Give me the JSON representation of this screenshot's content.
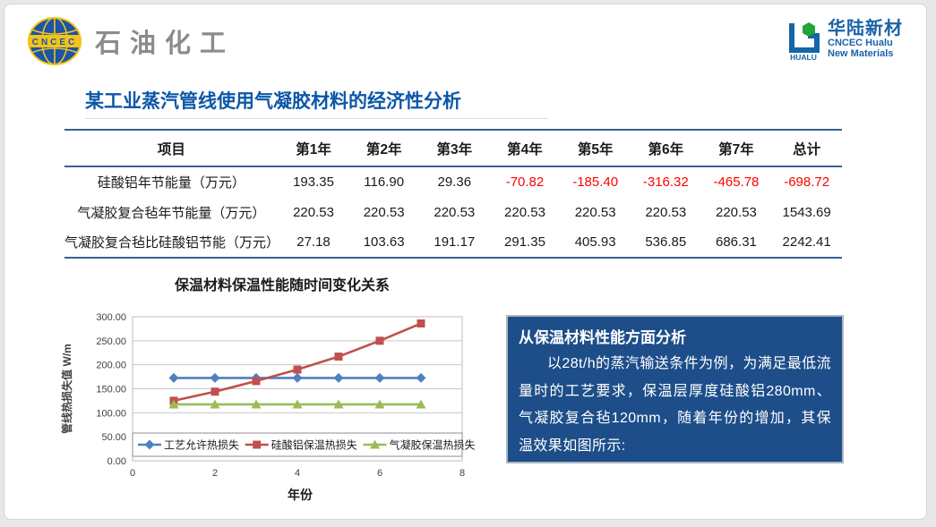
{
  "header": {
    "left_logo": {
      "badge": "CNCEC",
      "brand": "石油化工"
    },
    "right_logo": {
      "icon_caption": "HUALU",
      "name_cn": "华陆新材",
      "name_en_line1": "CNCEC Hualu",
      "name_en_line2": "New Materials"
    }
  },
  "title": "某工业蒸汽管线使用气凝胶材料的经济性分析",
  "table": {
    "columns": [
      "项目",
      "第1年",
      "第2年",
      "第3年",
      "第4年",
      "第5年",
      "第6年",
      "第7年",
      "总计"
    ],
    "rows": [
      {
        "label": "硅酸铝年节能量（万元）",
        "values": [
          "193.35",
          "116.90",
          "29.36",
          "-70.82",
          "-185.40",
          "-316.32",
          "-465.78",
          "-698.72"
        ]
      },
      {
        "label": "气凝胶复合毡年节能量（万元）",
        "values": [
          "220.53",
          "220.53",
          "220.53",
          "220.53",
          "220.53",
          "220.53",
          "220.53",
          "1543.69"
        ]
      },
      {
        "label": "气凝胶复合毡比硅酸铝节能（万元）",
        "values": [
          "27.18",
          "103.63",
          "191.17",
          "291.35",
          "405.93",
          "536.85",
          "686.31",
          "2242.41"
        ]
      }
    ],
    "negative_color": "#ff0000"
  },
  "chart_data": {
    "type": "line",
    "title": "保温材料保温性能随时间变化关系",
    "xlabel": "年份",
    "ylabel": "管线热损失值 W/m",
    "xlim": [
      0,
      8
    ],
    "ylim": [
      0,
      300
    ],
    "x_ticks": [
      "0",
      "2",
      "4",
      "6",
      "8"
    ],
    "y_ticks": [
      "300.00",
      "250.00",
      "200.00",
      "150.00",
      "100.00",
      "50.00",
      "0.00"
    ],
    "grid": true,
    "legend_position": "bottom-inside",
    "x": [
      1,
      2,
      3,
      4,
      5,
      6,
      7
    ],
    "series": [
      {
        "name": "工艺允许热损失",
        "color": "#4f81bd",
        "marker": "diamond",
        "values": [
          172.5,
          172.5,
          172.5,
          172.5,
          172.5,
          172.5,
          172.5
        ]
      },
      {
        "name": "硅酸铝保温热损失",
        "color": "#c0504d",
        "marker": "square",
        "values": [
          125,
          144,
          166,
          190,
          217,
          250,
          286
        ]
      },
      {
        "name": "气凝胶保温热损失",
        "color": "#9bbb59",
        "marker": "triangle",
        "values": [
          117.5,
          117.5,
          117.5,
          117.5,
          117.5,
          117.5,
          117.5
        ]
      }
    ]
  },
  "info_box": {
    "heading": "从保温材料性能方面分析",
    "body": "以28t/h的蒸汽输送条件为例，为满足最低流量时的工艺要求，保温层厚度硅酸铝280mm、气凝胶复合毡120mm，随着年份的增加，其保温效果如图所示:",
    "bg_color": "#1d4e89",
    "text_color": "#ffffff"
  }
}
